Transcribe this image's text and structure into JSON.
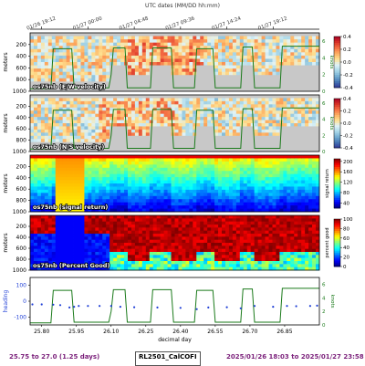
{
  "chart_data": [
    {
      "type": "heatmap",
      "label": "os75nb (E/W velocity)",
      "ylabel": "meters",
      "ylim": [
        1000,
        0
      ],
      "yticks": [
        200,
        400,
        600,
        800,
        1000
      ],
      "colorbar": {
        "ticks": [
          "0.4",
          "0.2",
          "0.0",
          "-0.2",
          "-0.4"
        ],
        "range": [
          -0.4,
          0.4
        ],
        "colors": [
          "#313695",
          "#4575b4",
          "#74add1",
          "#abd9e9",
          "#e0f3f8",
          "#fee090",
          "#fdae61",
          "#f46d43",
          "#d73027",
          "#a50026"
        ]
      },
      "right_axis": {
        "label": "knots",
        "ticks": [
          "6",
          "4",
          "2",
          "0"
        ]
      }
    },
    {
      "type": "heatmap",
      "label": "os75nb (N/S velocity)",
      "ylabel": "meters",
      "ylim": [
        1000,
        0
      ],
      "yticks": [
        200,
        400,
        600,
        800,
        1000
      ],
      "colorbar": {
        "ticks": [
          "0.4",
          "0.2",
          "0.0",
          "-0.2",
          "-0.4"
        ],
        "range": [
          -0.4,
          0.4
        ]
      },
      "right_axis": {
        "label": "knots",
        "ticks": [
          "6",
          "4",
          "2",
          "0"
        ]
      }
    },
    {
      "type": "heatmap",
      "label": "os75nb (signal return)",
      "ylabel": "meters",
      "ylim": [
        1000,
        0
      ],
      "yticks": [
        200,
        400,
        600,
        800,
        1000
      ],
      "colorbar": {
        "label": "signal return",
        "ticks": [
          "200",
          "160",
          "120",
          "80",
          "40"
        ],
        "range": [
          20,
          210
        ],
        "colors": [
          "#00007f",
          "#0000ff",
          "#007fff",
          "#00ffff",
          "#7fff7f",
          "#ffff00",
          "#ff7f00",
          "#ff0000",
          "#7f0000"
        ]
      }
    },
    {
      "type": "heatmap",
      "label": "os75nb (Percent Good)",
      "ylabel": "meters",
      "ylim": [
        1000,
        0
      ],
      "yticks": [
        200,
        400,
        600,
        800,
        1000
      ],
      "colorbar": {
        "label": "percent good",
        "ticks": [
          "100",
          "80",
          "60",
          "40",
          "20",
          "0"
        ],
        "range": [
          0,
          100
        ]
      }
    },
    {
      "type": "scatter",
      "ylabel": "heading",
      "right_label": "knots",
      "yticks": [
        "100",
        "0",
        "-100"
      ],
      "right_ticks": [
        "6",
        "4",
        "2",
        "0"
      ],
      "xlabel": "decimal day",
      "xlim": [
        25.75,
        27.0
      ],
      "xticks": [
        "25.80",
        "25.95",
        "26.10",
        "26.25",
        "26.40",
        "26.55",
        "26.70",
        "26.85"
      ],
      "series": [
        {
          "name": "heading",
          "x": [
            25.76,
            25.8,
            25.85,
            25.88,
            25.92,
            25.94,
            25.96,
            26.0,
            26.05,
            26.1,
            26.14,
            26.2,
            26.3,
            26.4,
            26.47,
            26.52,
            26.6,
            26.66,
            26.72,
            26.8,
            26.86,
            26.9,
            26.96,
            26.99
          ],
          "y": [
            -20,
            -20,
            -22,
            -25,
            -40,
            -35,
            -30,
            -30,
            -30,
            -30,
            -35,
            -38,
            -40,
            -42,
            -50,
            -40,
            -38,
            -45,
            -30,
            -35,
            -30,
            -32,
            -30,
            -28
          ]
        },
        {
          "name": "speed",
          "x": [
            25.75,
            25.84,
            25.85,
            25.93,
            25.94,
            26.09,
            26.1,
            26.11,
            26.16,
            26.17,
            26.27,
            26.28,
            26.36,
            26.37,
            26.46,
            26.47,
            26.54,
            26.55,
            26.66,
            26.67,
            26.71,
            26.72,
            26.83,
            26.84,
            26.99,
            27.0
          ],
          "y": [
            0.3,
            0.3,
            5.1,
            5.1,
            0.4,
            0.4,
            2.0,
            5.2,
            5.2,
            0.4,
            0.4,
            5.2,
            5.2,
            0.4,
            0.4,
            5.1,
            5.1,
            0.4,
            0.4,
            5.3,
            5.3,
            0.4,
            0.4,
            5.4,
            5.4,
            5.4
          ]
        }
      ]
    }
  ],
  "header": {
    "title": "UTC dates (MM/DD hh:mm)",
    "top_ticks": [
      "01/26 19:12",
      "01/27 00:00",
      "01/27 04:48",
      "01/27 09:36",
      "01/27 14:24",
      "01/27 19:12"
    ]
  },
  "footer": {
    "left": "25.75 to 27.0 (1.25 days)",
    "center": "RL2501_CalCOFI",
    "right": "2025/01/26 18:03 to 2025/01/27 23:58"
  },
  "ship_speed_knots": [
    0.3,
    0.3,
    5.1,
    5.1,
    0.4,
    0.4,
    5.2,
    5.2,
    0.4,
    0.4,
    5.2,
    5.2,
    0.4,
    0.4,
    5.1,
    5.1,
    0.4,
    0.4,
    5.3,
    5.3,
    0.4,
    0.4,
    5.4,
    5.4
  ]
}
